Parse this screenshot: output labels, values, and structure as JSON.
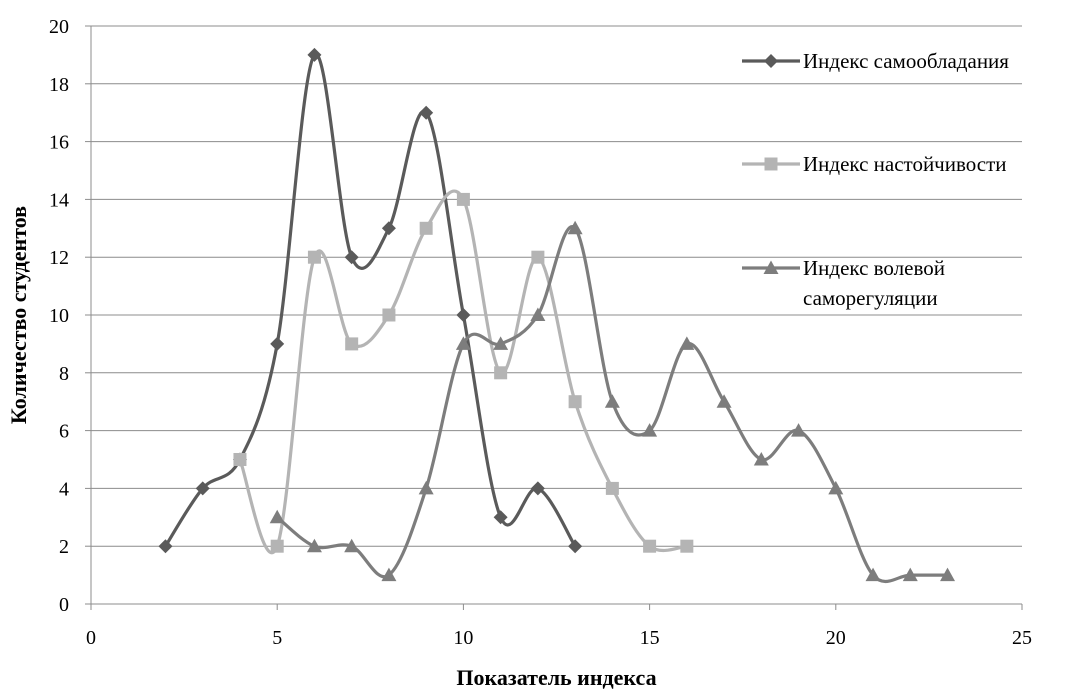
{
  "chart_data": {
    "type": "line",
    "xlabel": "Показатель индекса",
    "ylabel": "Количество студентов",
    "xlim": [
      0,
      25
    ],
    "ylim": [
      0,
      20
    ],
    "x_ticks": [
      "0",
      "5",
      "10",
      "15",
      "20",
      "25"
    ],
    "y_ticks": [
      "0",
      "2",
      "4",
      "6",
      "8",
      "10",
      "12",
      "14",
      "16",
      "18",
      "20"
    ],
    "grid": "horizontal",
    "legend_position": "right",
    "smooth": true,
    "series": [
      {
        "name": "Индекс самообладания",
        "color": "#5a5a5a",
        "marker": "diamond",
        "x": [
          2,
          3,
          4,
          5,
          6,
          7,
          8,
          9,
          10,
          11,
          12,
          13
        ],
        "y": [
          2,
          4,
          5,
          9,
          19,
          12,
          13,
          17,
          10,
          3,
          4,
          2
        ]
      },
      {
        "name": "Индекс настойчивости",
        "color": "#b4b4b4",
        "marker": "square",
        "x": [
          4,
          5,
          6,
          7,
          8,
          9,
          10,
          11,
          12,
          13,
          14,
          15,
          16
        ],
        "y": [
          5,
          2,
          12,
          9,
          10,
          13,
          14,
          8,
          12,
          7,
          4,
          2,
          2
        ]
      },
      {
        "name": "Индекс волевой саморегуляции",
        "name_lines": [
          "Индекс волевой",
          "саморегуляции"
        ],
        "color": "#7d7d7d",
        "marker": "triangle",
        "x": [
          5,
          6,
          7,
          8,
          9,
          10,
          11,
          12,
          13,
          14,
          15,
          16,
          17,
          18,
          19,
          20,
          21,
          22,
          23
        ],
        "y": [
          3,
          2,
          2,
          1,
          4,
          9,
          9,
          10,
          13,
          7,
          6,
          9,
          7,
          5,
          6,
          4,
          1,
          1,
          1
        ]
      }
    ]
  }
}
